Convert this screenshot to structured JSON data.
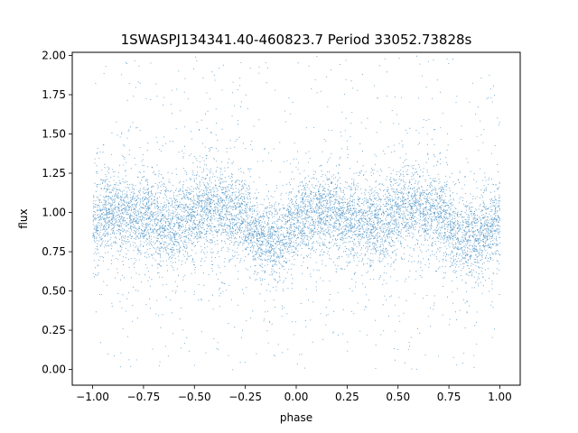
{
  "chart_data": {
    "type": "scatter",
    "title": "1SWASPJ134341.40-460823.7 Period 33052.73828s",
    "xlabel": "phase",
    "ylabel": "flux",
    "xlim": [
      -1.1,
      1.1
    ],
    "ylim": [
      -0.1,
      2.02
    ],
    "x_ticks": [
      "−1.00",
      "−0.75",
      "−0.50",
      "−0.25",
      "0.00",
      "0.25",
      "0.50",
      "0.75",
      "1.00"
    ],
    "x_tick_values": [
      -1.0,
      -0.75,
      -0.5,
      -0.25,
      0.0,
      0.25,
      0.5,
      0.75,
      1.0
    ],
    "y_ticks": [
      "0.00",
      "0.25",
      "0.50",
      "0.75",
      "1.00",
      "1.25",
      "1.50",
      "1.75",
      "2.00"
    ],
    "y_tick_values": [
      0.0,
      0.25,
      0.5,
      0.75,
      1.0,
      1.25,
      1.5,
      1.75,
      2.0
    ],
    "grid": false,
    "legend": "none",
    "marker_color": "#1f77b4",
    "series": [
      {
        "phase_range": [
          -1.0,
          1.0
        ],
        "flux_range": [
          0.0,
          2.0
        ],
        "trend": {
          "x": [
            -1.0,
            -0.9,
            -0.75,
            -0.6,
            -0.4,
            -0.3,
            -0.15,
            -0.1,
            0.0,
            0.1,
            0.25,
            0.4,
            0.55,
            0.7,
            0.8,
            0.85,
            0.9,
            1.0
          ],
          "y": [
            0.95,
            1.0,
            0.97,
            0.93,
            1.03,
            1.0,
            0.83,
            0.82,
            0.95,
            1.0,
            0.97,
            0.93,
            1.03,
            1.0,
            0.85,
            0.82,
            0.85,
            0.95
          ]
        }
      }
    ]
  }
}
